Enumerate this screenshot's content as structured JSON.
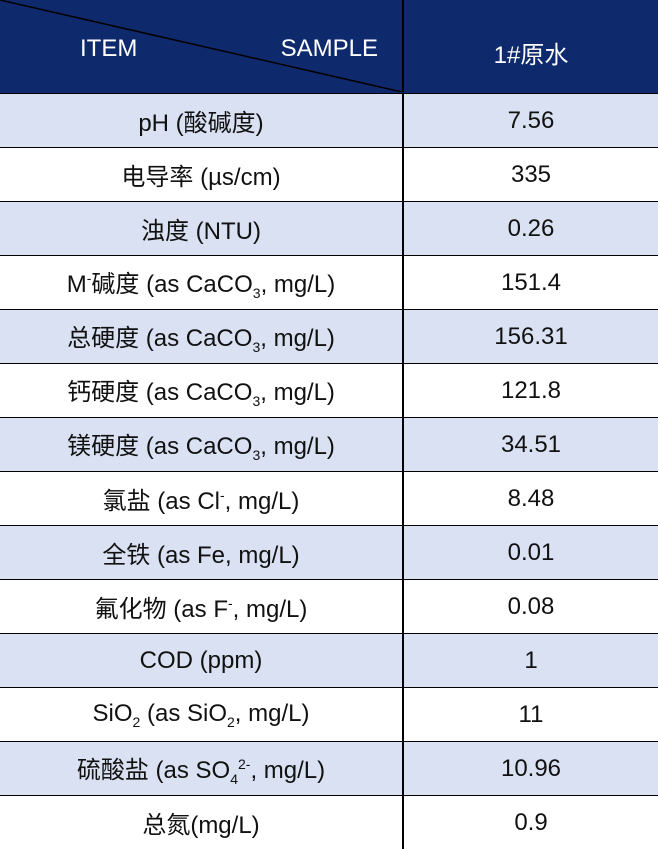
{
  "header": {
    "item": "ITEM",
    "sample": "SAMPLE",
    "column": "1#原水"
  },
  "table": {
    "rows": [
      {
        "item": [
          {
            "t": "pH (酸碱度)"
          }
        ],
        "value": "7.56"
      },
      {
        "item": [
          {
            "t": "电导率 (µs/cm)"
          }
        ],
        "value": "335"
      },
      {
        "item": [
          {
            "t": "浊度 (NTU)"
          }
        ],
        "value": "0.26"
      },
      {
        "item": [
          {
            "t": "M"
          },
          {
            "sup": "-"
          },
          {
            "t": "碱度 (as CaCO"
          },
          {
            "sub": "3"
          },
          {
            "t": ", mg/L)"
          }
        ],
        "value": "151.4"
      },
      {
        "item": [
          {
            "t": "总硬度 (as CaCO"
          },
          {
            "sub": "3"
          },
          {
            "t": ", mg/L)"
          }
        ],
        "value": "156.31"
      },
      {
        "item": [
          {
            "t": "钙硬度 (as CaCO"
          },
          {
            "sub": "3"
          },
          {
            "t": ", mg/L)"
          }
        ],
        "value": "121.8"
      },
      {
        "item": [
          {
            "t": "镁硬度 (as CaCO"
          },
          {
            "sub": "3"
          },
          {
            "t": ", mg/L)"
          }
        ],
        "value": "34.51"
      },
      {
        "item": [
          {
            "t": "氯盐 (as Cl"
          },
          {
            "sup": "-"
          },
          {
            "t": ", mg/L)"
          }
        ],
        "value": "8.48"
      },
      {
        "item": [
          {
            "t": "全铁 (as Fe, mg/L)"
          }
        ],
        "value": "0.01"
      },
      {
        "item": [
          {
            "t": "氟化物 (as F"
          },
          {
            "sup": "-"
          },
          {
            "t": ", mg/L)"
          }
        ],
        "value": "0.08"
      },
      {
        "item": [
          {
            "t": "COD (ppm)"
          }
        ],
        "value": "1"
      },
      {
        "item": [
          {
            "t": "SiO"
          },
          {
            "sub": "2"
          },
          {
            "t": " (as SiO"
          },
          {
            "sub": "2"
          },
          {
            "t": ", mg/L)"
          }
        ],
        "value": "11"
      },
      {
        "item": [
          {
            "t": "硫酸盐 (as SO"
          },
          {
            "sub": "4"
          },
          {
            "sup": "2-"
          },
          {
            "t": ", mg/L)"
          }
        ],
        "value": "10.96"
      },
      {
        "item": [
          {
            "t": "总氮(mg/L)"
          }
        ],
        "value": "0.9"
      }
    ]
  }
}
